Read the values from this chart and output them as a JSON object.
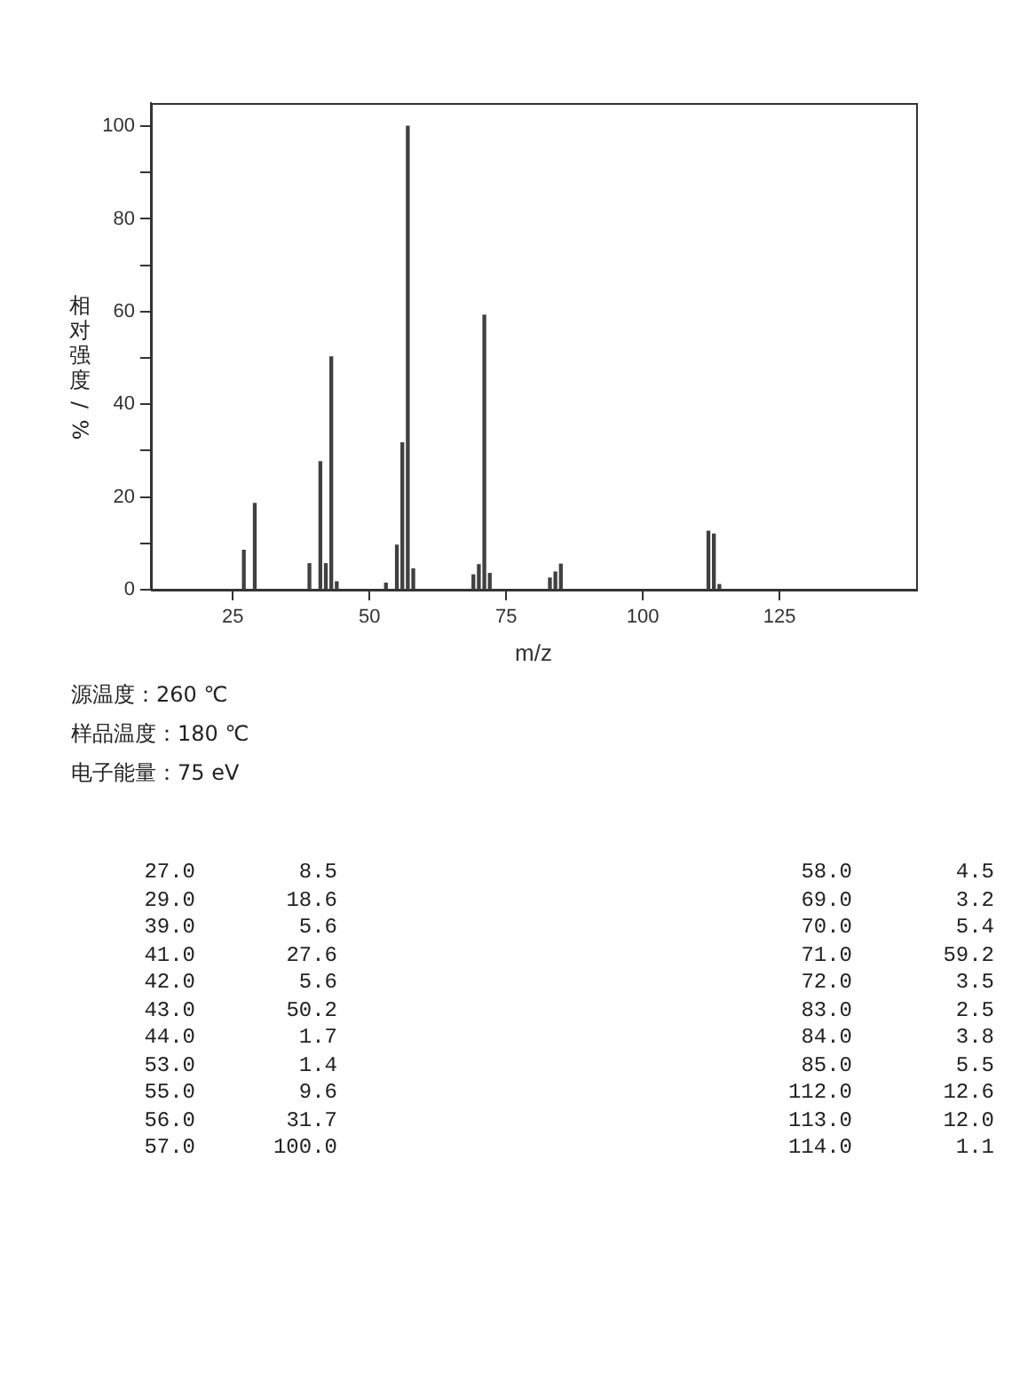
{
  "chart_data": [
    {
      "type": "bar",
      "xlabel": "m/z",
      "ylabel": "相对强度/%",
      "x": [
        27,
        29,
        39,
        41,
        42,
        43,
        44,
        53,
        55,
        56,
        57,
        58,
        69,
        70,
        71,
        72,
        83,
        84,
        85,
        112,
        113,
        114
      ],
      "values": [
        8.5,
        18.6,
        5.6,
        27.6,
        5.6,
        50.2,
        1.7,
        1.4,
        9.6,
        31.7,
        100.0,
        4.5,
        3.2,
        5.4,
        59.2,
        3.5,
        2.5,
        3.8,
        5.5,
        12.6,
        12.0,
        1.1
      ],
      "color": "#404040",
      "xlim": [
        10,
        150
      ],
      "xticks": [
        25,
        50,
        75,
        100,
        125
      ],
      "ylim": [
        0,
        105
      ],
      "yticks": [
        0,
        {
          "value": 10,
          "label": null
        },
        20,
        {
          "value": 30,
          "label": null
        },
        40,
        {
          "value": 50,
          "label": null
        },
        60,
        {
          "value": 70,
          "label": null
        },
        80,
        {
          "value": 90,
          "label": null
        },
        100
      ],
      "annotations": [
        "源温度：260 ℃",
        "样品温度：180 ℃",
        "电子能量：75 eV"
      ]
    },
    {
      "type": "other",
      "annotations": [
        "27.0",
        "8.5",
        "29.0",
        "18.6",
        "39.0",
        "5.6",
        "41.0",
        "27.6",
        "42.0",
        "5.6",
        "43.0",
        "50.2",
        "44.0",
        "1.7",
        "53.0",
        "1.4",
        "55.0",
        "9.6",
        "56.0",
        "31.7",
        "57.0",
        "100.0",
        "58.0",
        "4.5",
        "69.0",
        "3.2",
        "70.0",
        "5.4",
        "71.0",
        "59.2",
        "72.0",
        "3.5",
        "83.0",
        "2.5",
        "84.0",
        "3.8",
        "85.0",
        "5.5",
        "112.0",
        "12.6",
        "113.0",
        "12.0",
        "114.0",
        "1.1"
      ]
    }
  ]
}
